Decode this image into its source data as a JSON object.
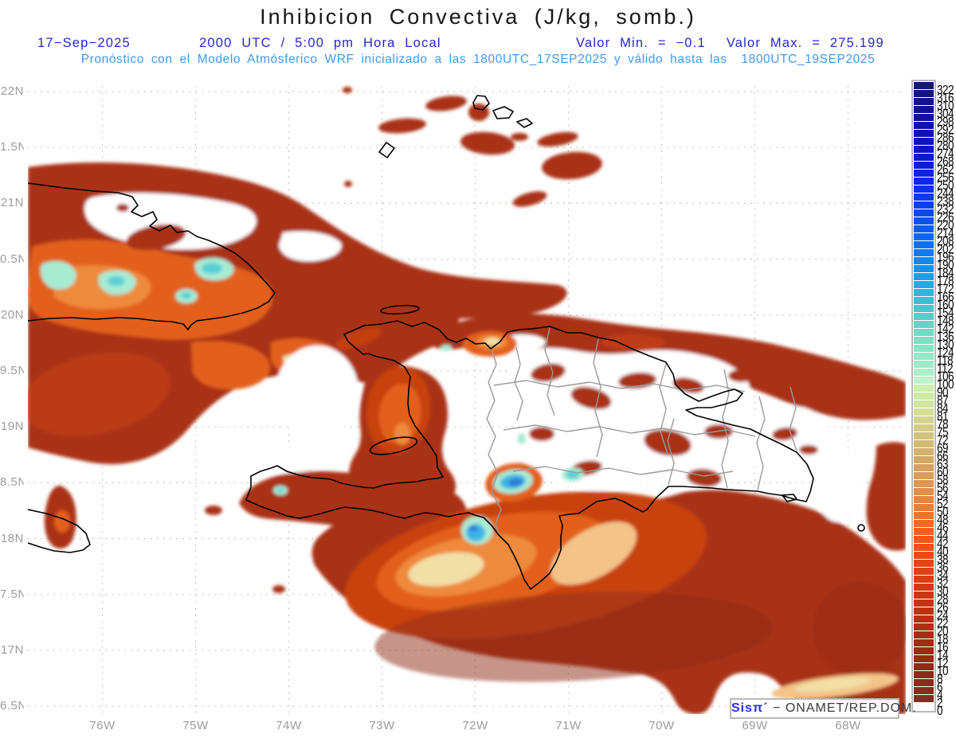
{
  "header": {
    "title": "Inhibicion Convectiva (J/kg, somb.)",
    "date": "17−Sep−2025",
    "time_line": "2000 UTC / 5:00 pm Hora Local",
    "valor_min": "Valor Min. = −0.1",
    "valor_max": "Valor Max. = 275.199",
    "model_line": "Pronóstico con el Modelo Atmósferico WRF inicializado a las 1800UTC_17SEP2025 y válido hasta las  1800UTC_19SEP2025"
  },
  "map": {
    "lat_labels": [
      "22N",
      "1.5N",
      "21N",
      "0.5N",
      "20N",
      "9.5N",
      "19N",
      "8.5N",
      "18N",
      "7.5N",
      "17N",
      "6.5N"
    ],
    "lon_labels": [
      "76W",
      "75W",
      "74W",
      "73W",
      "72W",
      "71W",
      "70W",
      "69W",
      "68W"
    ],
    "field_name": "Convective Inhibition (CIN)",
    "units": "J/kg",
    "value_min": -0.1,
    "value_max": 275.199
  },
  "colorbar": {
    "tick_values": [
      322,
      316,
      310,
      304,
      298,
      292,
      286,
      280,
      274,
      268,
      262,
      256,
      250,
      244,
      238,
      232,
      226,
      220,
      214,
      208,
      202,
      196,
      190,
      184,
      178,
      172,
      166,
      160,
      154,
      148,
      142,
      136,
      130,
      124,
      118,
      112,
      106,
      100,
      90,
      87,
      84,
      81,
      78,
      75,
      72,
      69,
      66,
      63,
      60,
      58,
      56,
      54,
      52,
      50,
      48,
      46,
      44,
      42,
      40,
      38,
      36,
      34,
      32,
      30,
      28,
      26,
      24,
      22,
      20,
      18,
      16,
      14,
      12,
      10,
      8,
      6,
      4,
      2,
      0
    ],
    "stops": [
      {
        "i": 0,
        "c": "#15157B"
      },
      {
        "i": 4,
        "c": "#10109A"
      },
      {
        "i": 8,
        "c": "#0D16BC"
      },
      {
        "i": 12,
        "c": "#0A2ADC"
      },
      {
        "i": 16,
        "c": "#084AF0"
      },
      {
        "i": 20,
        "c": "#0B70F5"
      },
      {
        "i": 23,
        "c": "#1392EF"
      },
      {
        "i": 26,
        "c": "#30B5DB"
      },
      {
        "i": 29,
        "c": "#57CDC7"
      },
      {
        "i": 32,
        "c": "#80DFC3"
      },
      {
        "i": 35,
        "c": "#9EEBCA"
      },
      {
        "i": 37,
        "c": "#BDF2CC"
      },
      {
        "i": 38,
        "c": "#C9F0AC"
      },
      {
        "i": 41,
        "c": "#D4DF95"
      },
      {
        "i": 44,
        "c": "#D3C17E"
      },
      {
        "i": 47,
        "c": "#D3A864"
      },
      {
        "i": 50,
        "c": "#DF9651"
      },
      {
        "i": 53,
        "c": "#EF7C31"
      },
      {
        "i": 56,
        "c": "#FA5F16"
      },
      {
        "i": 59,
        "c": "#E94A0E"
      },
      {
        "i": 62,
        "c": "#D73E10"
      },
      {
        "i": 65,
        "c": "#C23514"
      },
      {
        "i": 68,
        "c": "#B12E15"
      },
      {
        "i": 71,
        "c": "#9F2914"
      },
      {
        "i": 74,
        "c": "#8F2918"
      },
      {
        "i": 77,
        "c": "#803023"
      },
      {
        "i": 78,
        "c": "#FFFFFF"
      }
    ]
  },
  "branding": {
    "logo_text": "Sisπ´",
    "org_text": "− ONAMET/REP.DOM."
  },
  "colors": {
    "field_base": "#A93118",
    "field_maroon": "#8F2B16",
    "field_red": "#C8430F",
    "field_orange": "#E2601C",
    "field_orange_lt": "#EE8A3C",
    "field_peach": "#F3C387",
    "field_cream": "#F2DFA6",
    "field_palegreen": "#CBEFAD",
    "field_mint": "#A8EBD2",
    "field_aqua": "#58CFD6",
    "field_cyan": "#3FB4E6",
    "field_blue": "#2E7FD6",
    "white": "#FFFFFF",
    "coast": "#000000",
    "admin": "#9A9A9A",
    "grid": "#BBBBBB",
    "axis_text": "#9C9C9C",
    "title_text": "#161616",
    "header_blue": "#2527CE",
    "header_lightblue": "#3E99F2",
    "logo_blue": "#2B2BE8",
    "box_border": "#B9B9B9",
    "cb_label": "#000000"
  }
}
